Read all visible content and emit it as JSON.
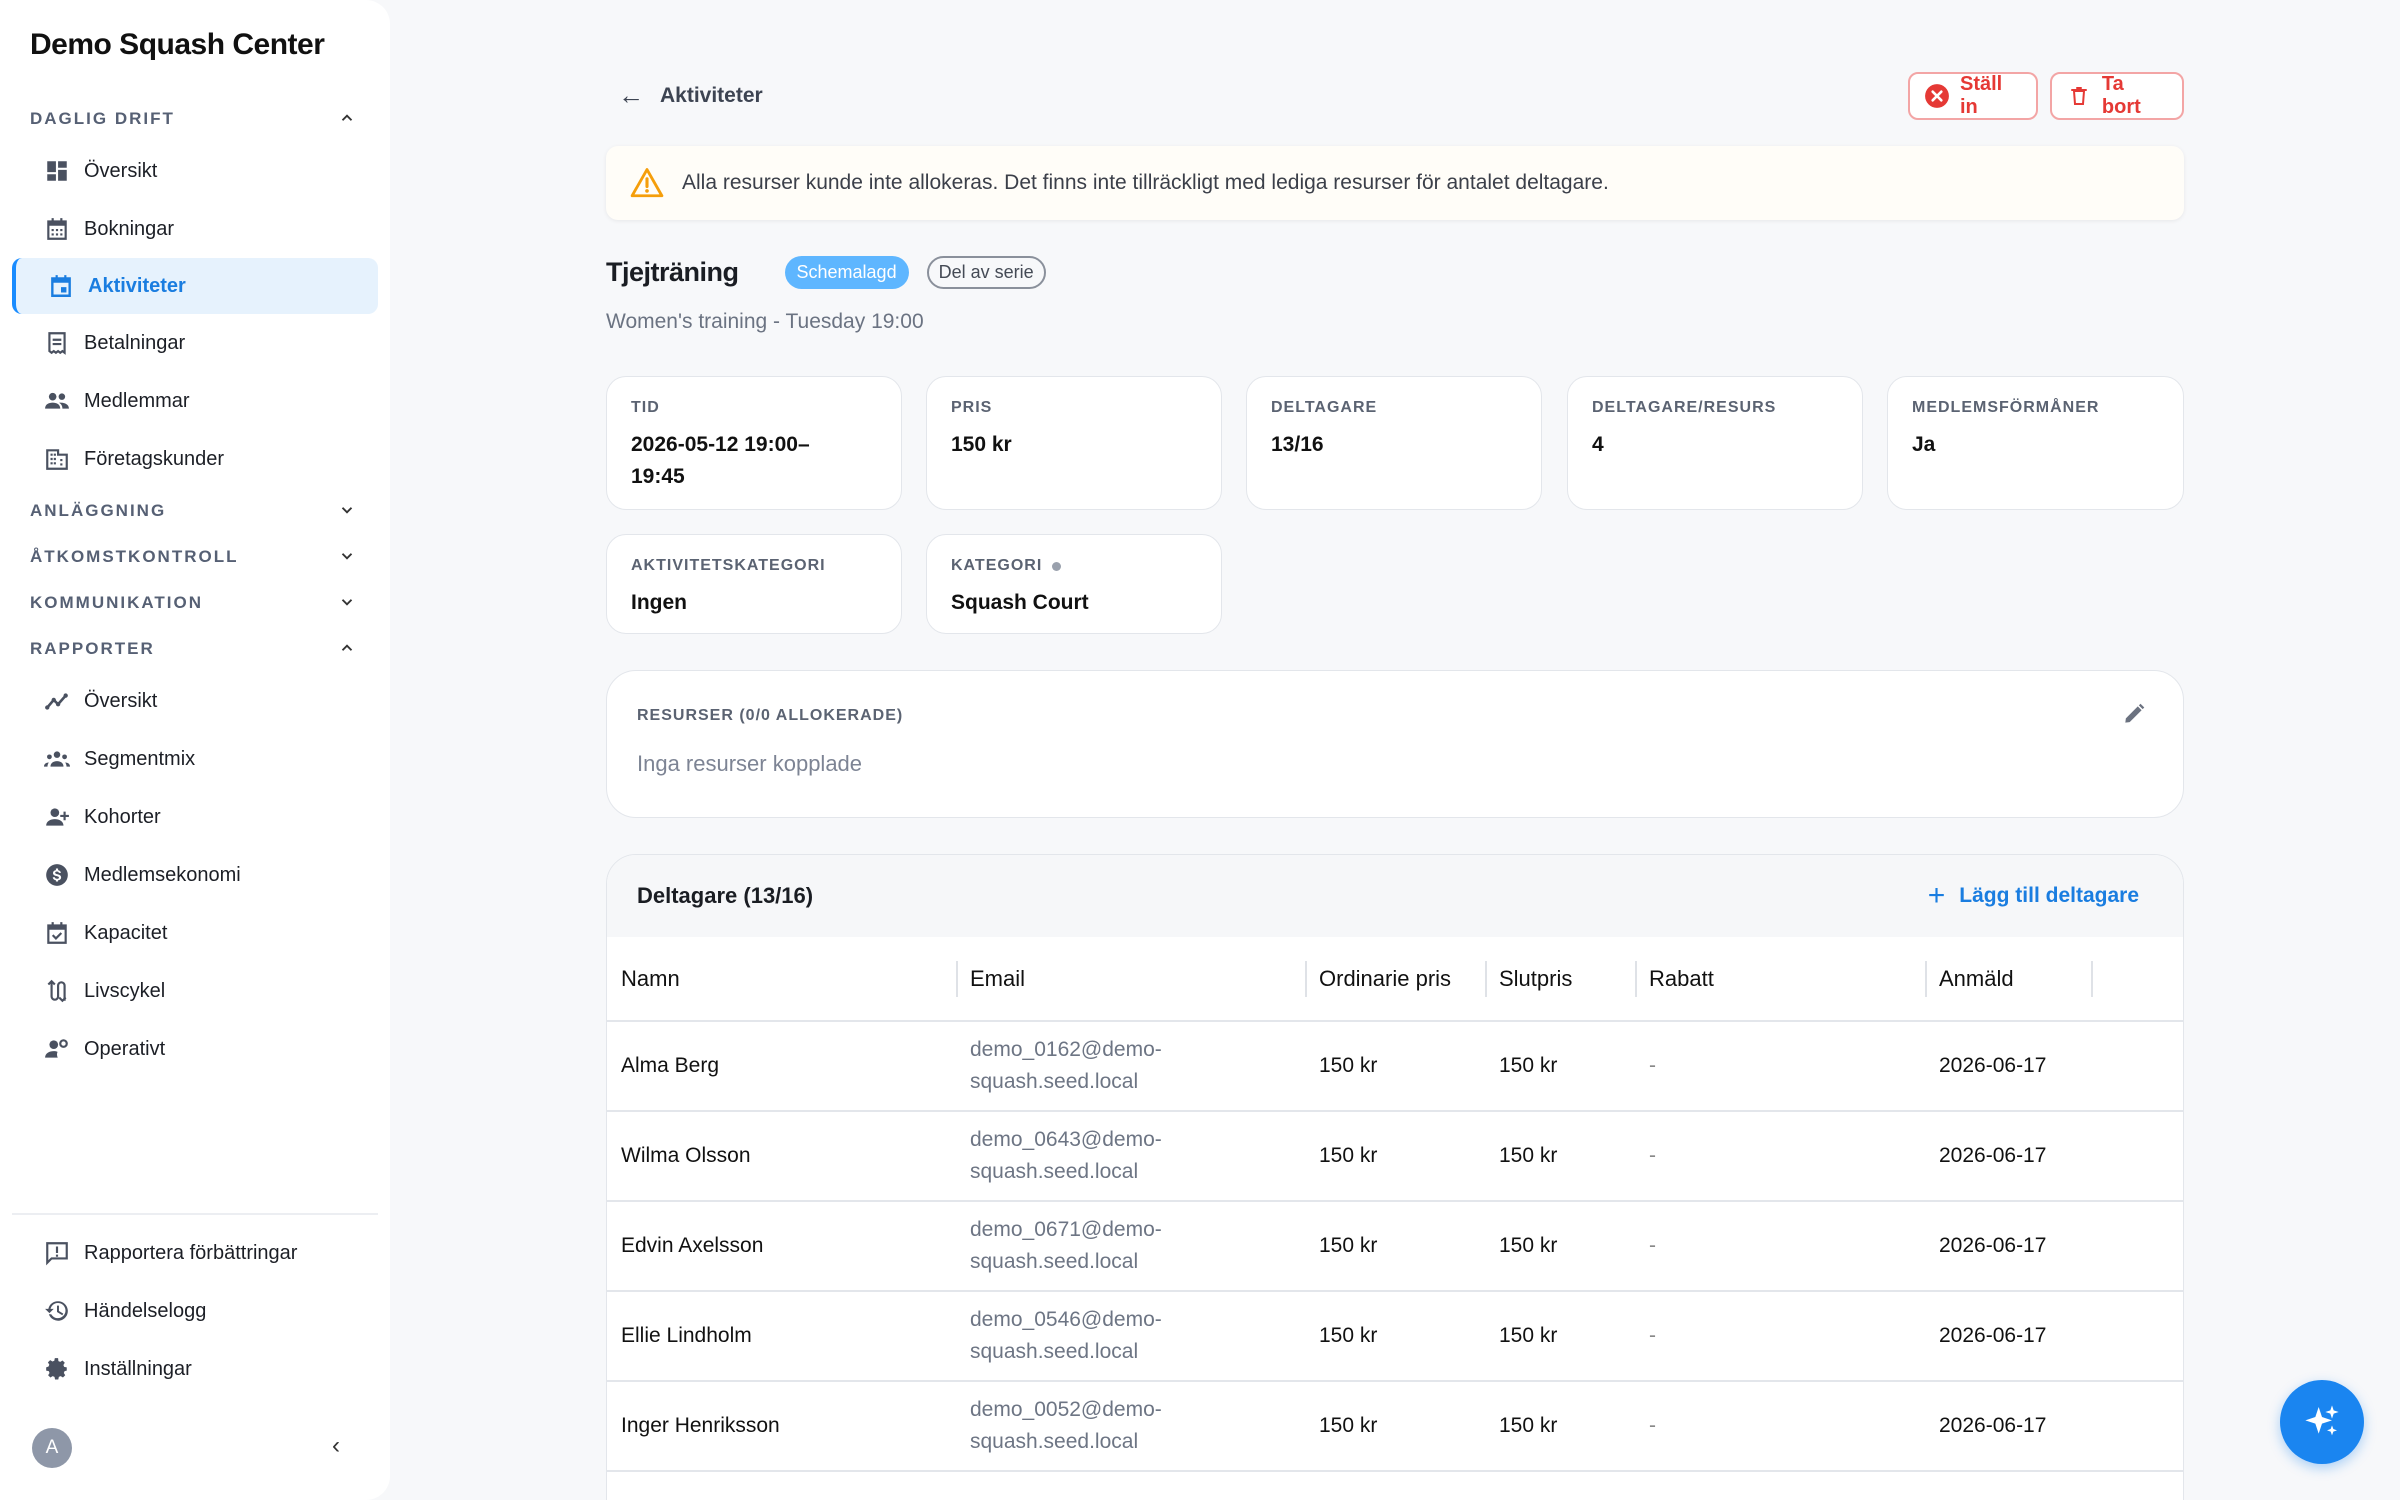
{
  "app": {
    "title": "Demo Squash Center"
  },
  "sidebar": {
    "sections": [
      {
        "label": "DAGLIG DRIFT",
        "expanded": true,
        "items": [
          {
            "label": "Översikt",
            "icon": "dashboard-icon"
          },
          {
            "label": "Bokningar",
            "icon": "calendar-grid-icon"
          },
          {
            "label": "Aktiviteter",
            "icon": "event-icon",
            "active": true
          },
          {
            "label": "Betalningar",
            "icon": "receipt-icon"
          },
          {
            "label": "Medlemmar",
            "icon": "people-icon"
          },
          {
            "label": "Företagskunder",
            "icon": "building-icon"
          }
        ]
      },
      {
        "label": "ANLÄGGNING",
        "expanded": false
      },
      {
        "label": "ÅTKOMSTKONTROLL",
        "expanded": false
      },
      {
        "label": "KOMMUNIKATION",
        "expanded": false
      },
      {
        "label": "RAPPORTER",
        "expanded": true,
        "items": [
          {
            "label": "Översikt",
            "icon": "insights-icon"
          },
          {
            "label": "Segmentmix",
            "icon": "groups-icon"
          },
          {
            "label": "Kohorter",
            "icon": "person-add-icon"
          },
          {
            "label": "Medlemsekonomi",
            "icon": "dollar-icon"
          },
          {
            "label": "Kapacitet",
            "icon": "event-available-icon"
          },
          {
            "label": "Livscykel",
            "icon": "cycle-icon"
          },
          {
            "label": "Operativt",
            "icon": "person-gear-icon"
          }
        ]
      }
    ],
    "bottom_items": [
      {
        "label": "Rapportera förbättringar",
        "icon": "feedback-icon"
      },
      {
        "label": "Händelselogg",
        "icon": "history-icon"
      },
      {
        "label": "Inställningar",
        "icon": "gear-icon"
      }
    ],
    "avatar_letter": "A"
  },
  "header": {
    "back_label": "Aktiviteter",
    "cancel_label": "Ställ in",
    "delete_label": "Ta bort"
  },
  "alert": {
    "text": "Alla resurser kunde inte allokeras. Det finns inte tillräckligt med lediga resurser för antalet deltagare."
  },
  "activity": {
    "title": "Tjejträning",
    "status_badge": "Schemalagd",
    "series_badge": "Del av serie",
    "subtitle": "Women's training - Tuesday 19:00"
  },
  "info_cards": [
    {
      "label": "TID",
      "value": "2026-05-12 19:00–19:45"
    },
    {
      "label": "PRIS",
      "value": "150 kr"
    },
    {
      "label": "DELTAGARE",
      "value": "13/16"
    },
    {
      "label": "DELTAGARE/RESURS",
      "value": "4"
    },
    {
      "label": "MEDLEMSFÖRMÅNER",
      "value": "Ja"
    },
    {
      "label": "AKTIVITETSKATEGORI",
      "value": "Ingen"
    },
    {
      "label": "KATEGORI",
      "value": "Squash Court"
    }
  ],
  "resources": {
    "label": "RESURSER (0/0 ALLOKERADE)",
    "empty_text": "Inga resurser kopplade"
  },
  "participants": {
    "title": "Deltagare (13/16)",
    "add_label": "Lägg till deltagare",
    "columns": [
      "Namn",
      "Email",
      "Ordinarie pris",
      "Slutpris",
      "Rabatt",
      "Anmäld"
    ],
    "rows": [
      {
        "name": "Alma Berg",
        "email": "demo_0162@demo-squash.seed.local",
        "price": "150 kr",
        "final": "150 kr",
        "discount": "-",
        "registered": "2026-06-17"
      },
      {
        "name": "Wilma Olsson",
        "email": "demo_0643@demo-squash.seed.local",
        "price": "150 kr",
        "final": "150 kr",
        "discount": "-",
        "registered": "2026-06-17"
      },
      {
        "name": "Edvin Axelsson",
        "email": "demo_0671@demo-squash.seed.local",
        "price": "150 kr",
        "final": "150 kr",
        "discount": "-",
        "registered": "2026-06-17"
      },
      {
        "name": "Ellie Lindholm",
        "email": "demo_0546@demo-squash.seed.local",
        "price": "150 kr",
        "final": "150 kr",
        "discount": "-",
        "registered": "2026-06-17"
      },
      {
        "name": "Inger Henriksson",
        "email": "demo_0052@demo-squash.seed.local",
        "price": "150 kr",
        "final": "150 kr",
        "discount": "-",
        "registered": "2026-06-17"
      }
    ]
  },
  "colors": {
    "accent": "#1a7de0",
    "danger": "#e53935",
    "warning": "#f59e0b",
    "badge_scheduled": "#5eb6ff"
  }
}
